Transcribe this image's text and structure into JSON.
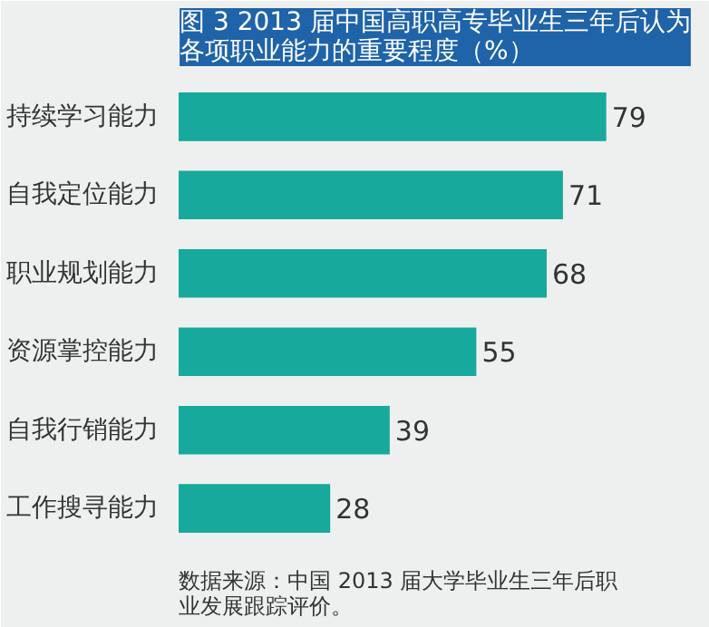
{
  "chart_data": {
    "type": "bar",
    "orientation": "horizontal",
    "title": "图 3 2013 届中国高职高专毕业生三年后认为各项职业能力的重要程度（%）",
    "categories": [
      "持续学习能力",
      "自我定位能力",
      "职业规划能力",
      "资源掌控能力",
      "自我行销能力",
      "工作搜寻能力"
    ],
    "values": [
      79,
      71,
      68,
      55,
      39,
      28
    ],
    "color": "#17a99b",
    "data_labels": true,
    "grid": false,
    "annotations": [
      "数据来源：中国 2013 届大学毕业生三年后职业发展跟踪评价。"
    ]
  }
}
